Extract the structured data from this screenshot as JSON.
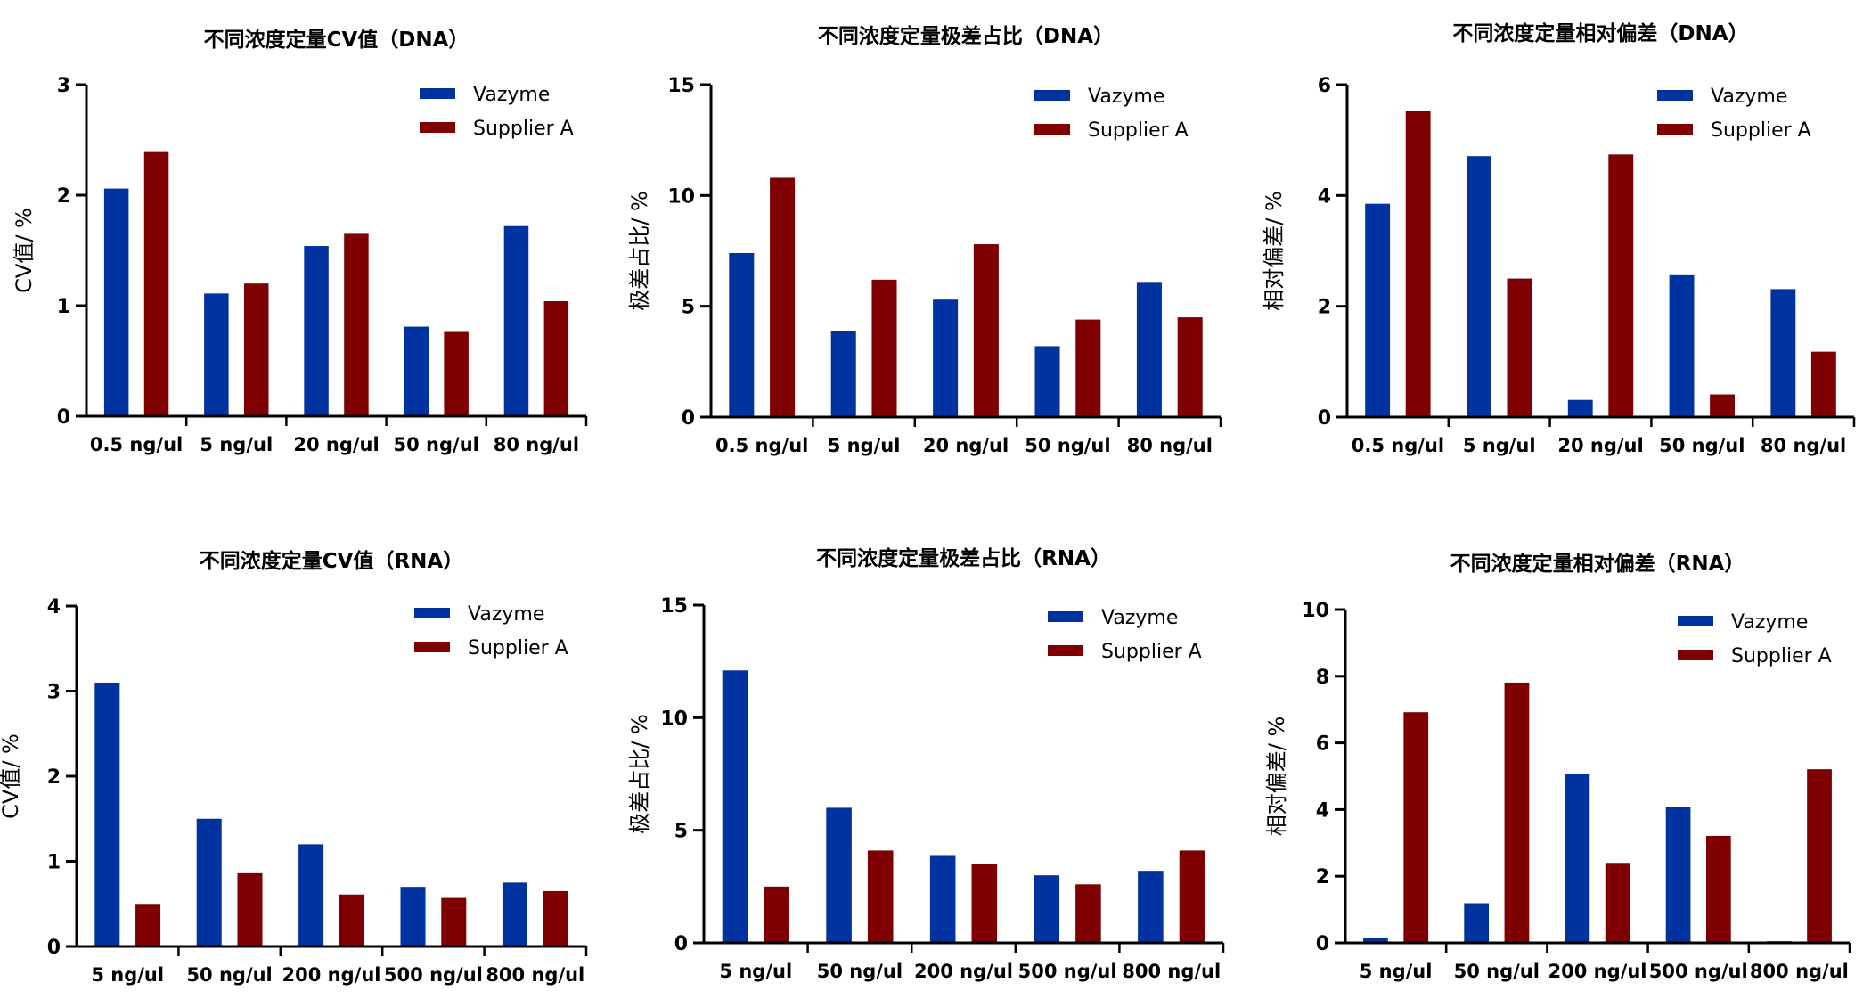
{
  "colors": {
    "vazyme": "#0033a0",
    "supplier_a": "#7f0000",
    "axis": "#000000",
    "background": "#ffffff"
  },
  "chart_data": [
    {
      "type": "bar",
      "title": "不同浓度定量CV值（DNA）",
      "ylabel": "CV值/ %",
      "xlabel": "",
      "ylim": [
        0,
        3
      ],
      "yticks": [
        0,
        1,
        2,
        3
      ],
      "categories": [
        "0.5 ng/ul",
        "5 ng/ul",
        "20 ng/ul",
        "50 ng/ul",
        "80 ng/ul"
      ],
      "series": [
        {
          "name": "Vazyme",
          "color": "#0033a0",
          "values": [
            2.06,
            1.11,
            1.54,
            0.81,
            1.72
          ]
        },
        {
          "name": "Supplier A",
          "color": "#7f0000",
          "values": [
            2.39,
            1.2,
            1.65,
            0.77,
            1.04
          ]
        }
      ],
      "legend": "top-right"
    },
    {
      "type": "bar",
      "title": "不同浓度定量极差占比（DNA）",
      "ylabel": "极差占比/ %",
      "xlabel": "",
      "ylim": [
        0,
        15
      ],
      "yticks": [
        0,
        5,
        10,
        15
      ],
      "categories": [
        "0.5 ng/ul",
        "5 ng/ul",
        "20 ng/ul",
        "50 ng/ul",
        "80 ng/ul"
      ],
      "series": [
        {
          "name": "Vazyme",
          "color": "#0033a0",
          "values": [
            7.4,
            3.9,
            5.3,
            3.2,
            6.1
          ]
        },
        {
          "name": "Supplier A",
          "color": "#7f0000",
          "values": [
            10.8,
            6.2,
            7.8,
            4.4,
            4.5
          ]
        }
      ],
      "legend": "top-right"
    },
    {
      "type": "bar",
      "title": "不同浓度定量相对偏差（DNA）",
      "ylabel": "相对偏差/ %",
      "xlabel": "",
      "ylim": [
        0,
        6
      ],
      "yticks": [
        0,
        2,
        4,
        6
      ],
      "categories": [
        "0.5 ng/ul",
        "5 ng/ul",
        "20 ng/ul",
        "50 ng/ul",
        "80 ng/ul"
      ],
      "series": [
        {
          "name": "Vazyme",
          "color": "#0033a0",
          "values": [
            3.85,
            4.71,
            0.31,
            2.56,
            2.31
          ]
        },
        {
          "name": "Supplier A",
          "color": "#7f0000",
          "values": [
            5.53,
            2.5,
            4.74,
            0.41,
            1.18
          ]
        }
      ],
      "legend": "top-right"
    },
    {
      "type": "bar",
      "title": "不同浓度定量CV值（RNA）",
      "ylabel": "CV值/ %",
      "xlabel": "",
      "ylim": [
        0,
        4
      ],
      "yticks": [
        0,
        1,
        2,
        3,
        4
      ],
      "categories": [
        "5 ng/ul",
        "50 ng/ul",
        "200 ng/ul",
        "500 ng/ul",
        "800 ng/ul"
      ],
      "series": [
        {
          "name": "Vazyme",
          "color": "#0033a0",
          "values": [
            3.1,
            1.5,
            1.2,
            0.7,
            0.75
          ]
        },
        {
          "name": "Supplier A",
          "color": "#7f0000",
          "values": [
            0.5,
            0.86,
            0.61,
            0.57,
            0.65
          ]
        }
      ],
      "legend": "top-right"
    },
    {
      "type": "bar",
      "title": "不同浓度定量极差占比（RNA）",
      "ylabel": "极差占比/ %",
      "xlabel": "",
      "ylim": [
        0,
        15
      ],
      "yticks": [
        0,
        5,
        10,
        15
      ],
      "categories": [
        "5 ng/ul",
        "50 ng/ul",
        "200 ng/ul",
        "500 ng/ul",
        "800 ng/ul"
      ],
      "series": [
        {
          "name": "Vazyme",
          "color": "#0033a0",
          "values": [
            12.1,
            6.0,
            3.9,
            3.0,
            3.2
          ]
        },
        {
          "name": "Supplier A",
          "color": "#7f0000",
          "values": [
            2.5,
            4.1,
            3.5,
            2.6,
            4.1
          ]
        }
      ],
      "legend": "top-right"
    },
    {
      "type": "bar",
      "title": "不同浓度定量相对偏差（RNA）",
      "ylabel": "相对偏差/ %",
      "xlabel": "",
      "ylim": [
        0,
        10
      ],
      "yticks": [
        0,
        2,
        4,
        6,
        8,
        10
      ],
      "categories": [
        "5 ng/ul",
        "50 ng/ul",
        "200 ng/ul",
        "500 ng/ul",
        "800 ng/ul"
      ],
      "series": [
        {
          "name": "Vazyme",
          "color": "#0033a0",
          "values": [
            0.15,
            1.19,
            5.07,
            4.07,
            0.05
          ]
        },
        {
          "name": "Supplier A",
          "color": "#7f0000",
          "values": [
            6.92,
            7.81,
            2.4,
            3.21,
            5.21
          ]
        }
      ],
      "legend": "top-right"
    }
  ]
}
